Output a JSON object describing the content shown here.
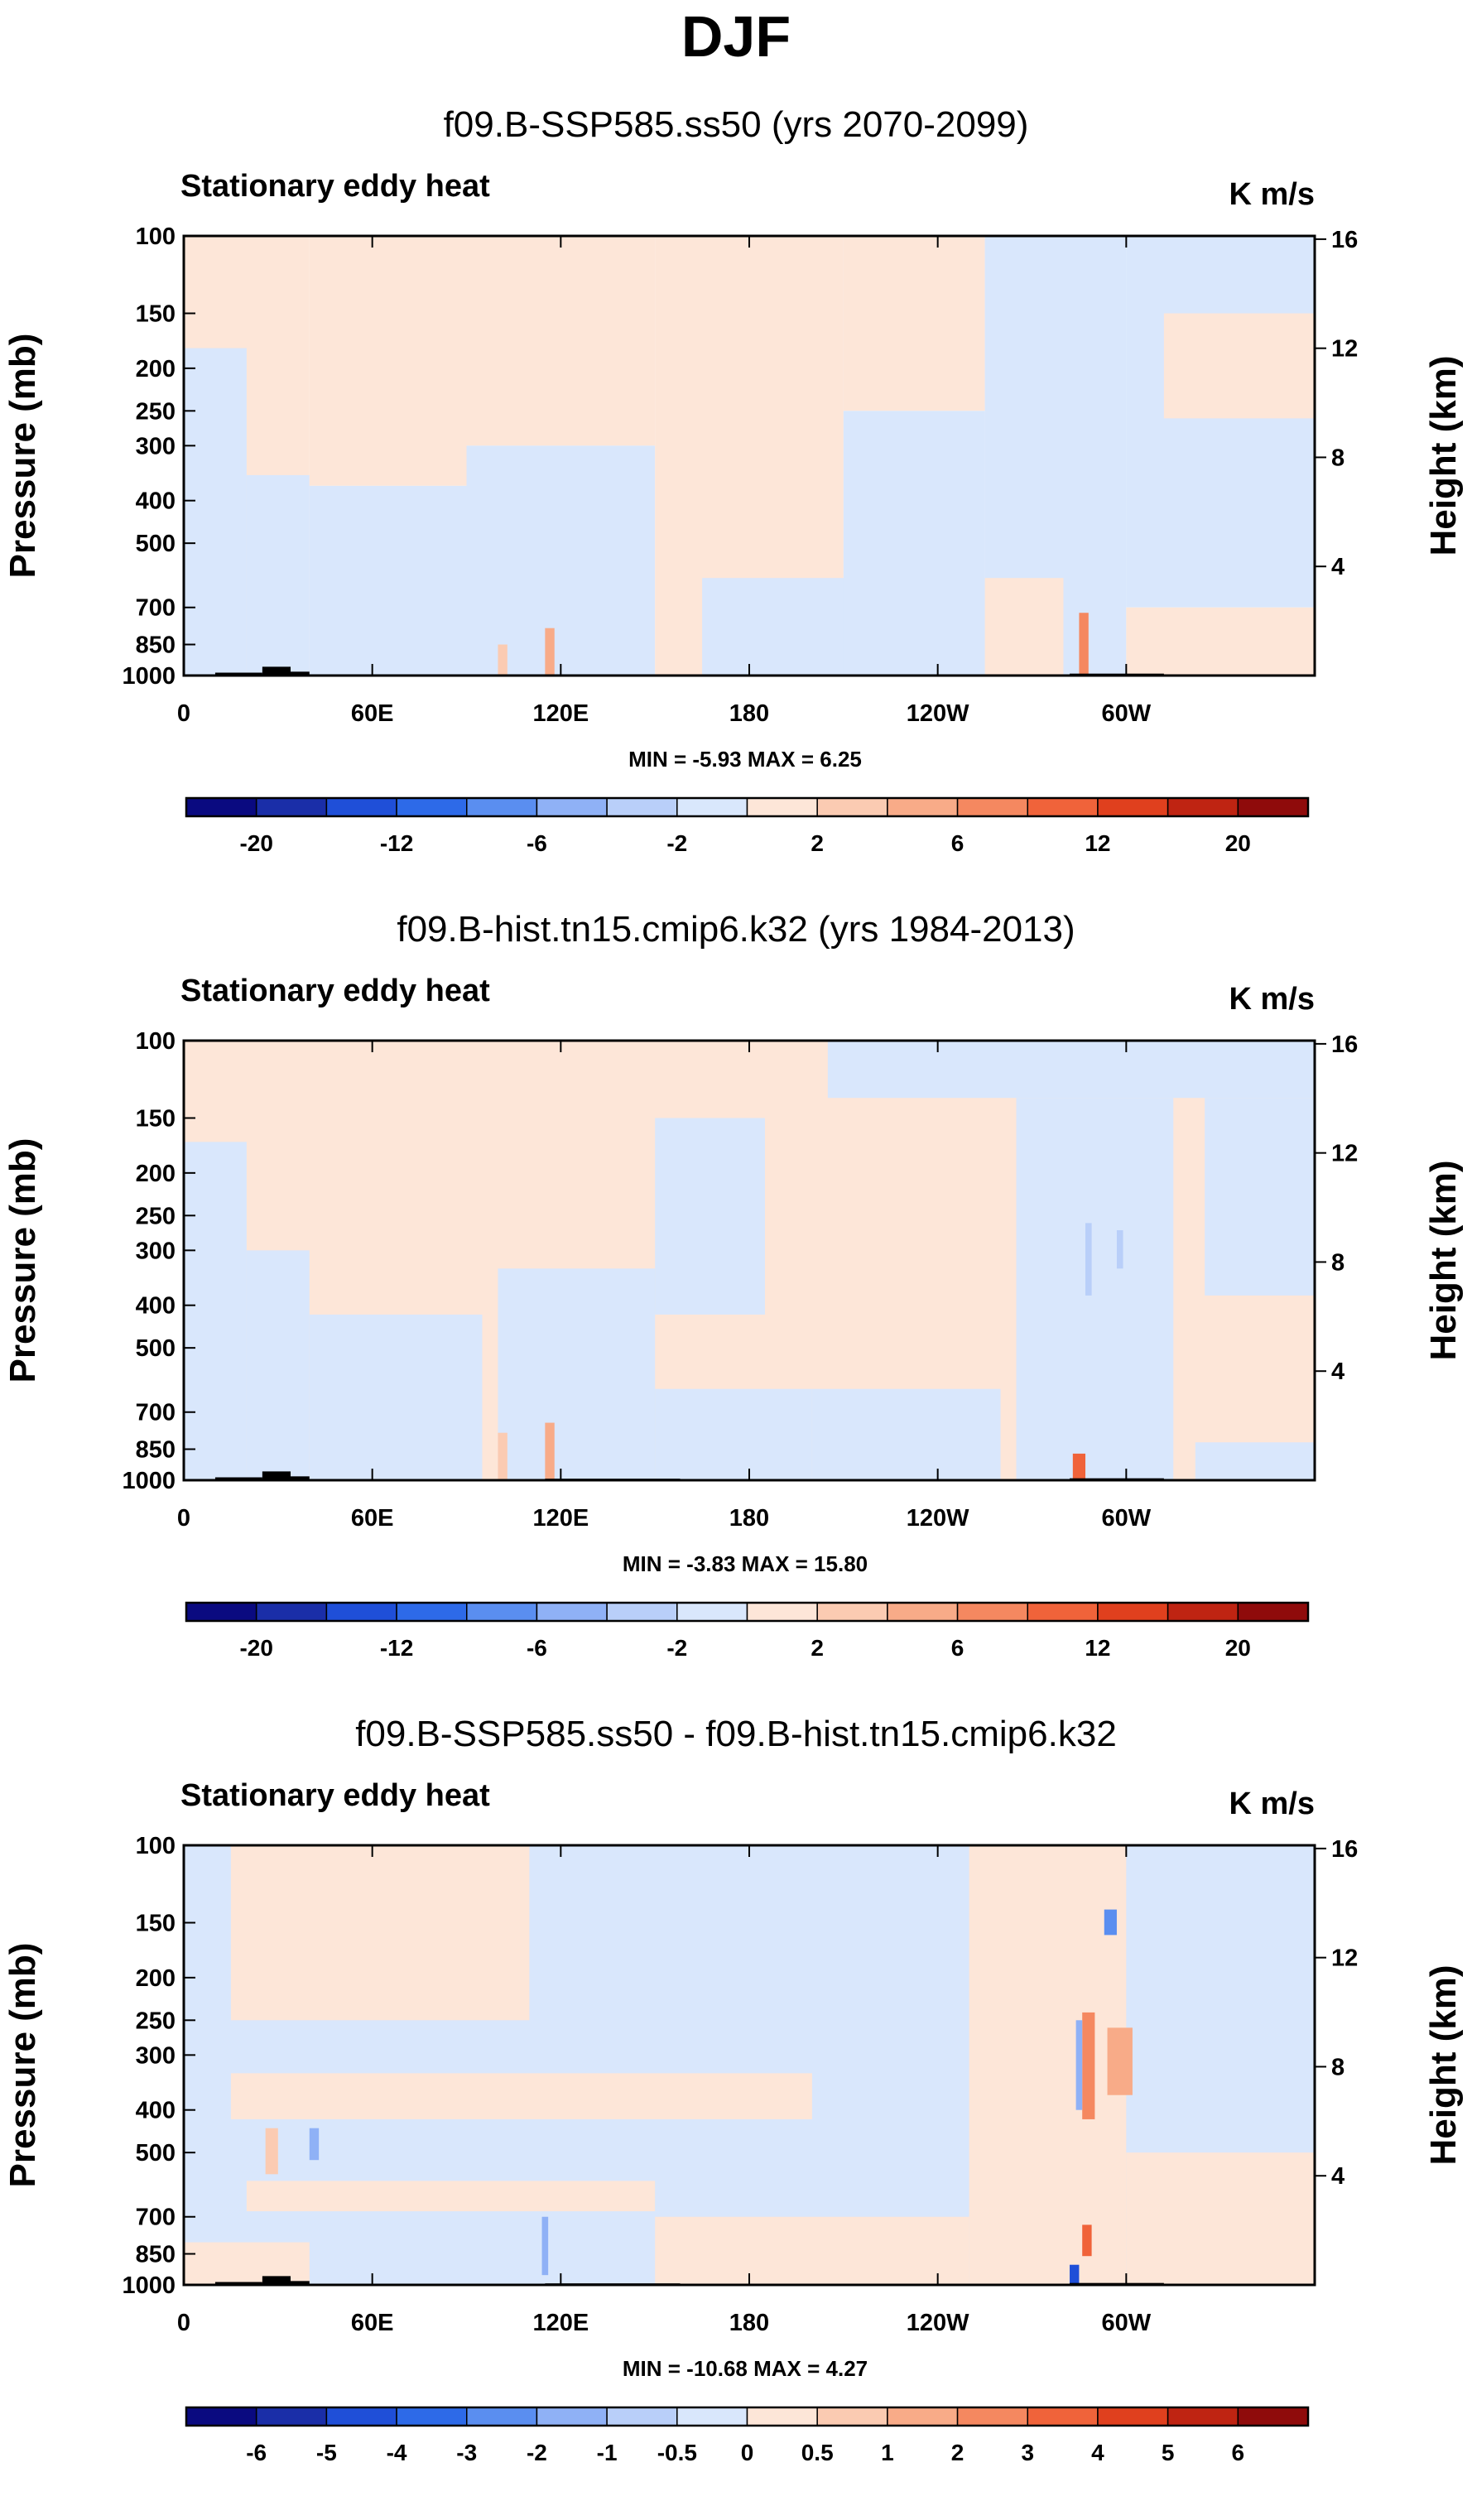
{
  "figure_title": "DJF",
  "chart_data": [
    {
      "type": "heatmap",
      "title": "f09.B-SSP585.ss50 (yrs 2070-2099)",
      "left_string": "Stationary eddy heat",
      "right_string": "K m/s",
      "ylabel": "Pressure (mb)",
      "ylabel_right": "Height (km)",
      "x_ticks": [
        "0",
        "60E",
        "120E",
        "180",
        "120W",
        "60W"
      ],
      "x_tick_values": [
        0,
        60,
        120,
        180,
        240,
        300
      ],
      "xlim": [
        0,
        360
      ],
      "y_ticks": [
        "100",
        "150",
        "200",
        "250",
        "300",
        "400",
        "500",
        "700",
        "850",
        "1000"
      ],
      "y_tick_values": [
        100,
        150,
        200,
        250,
        300,
        400,
        500,
        700,
        850,
        1000
      ],
      "ylim": [
        1000,
        100
      ],
      "y_right_ticks": [
        "16",
        "12",
        "8",
        "4"
      ],
      "y_right_values": [
        16,
        12,
        8,
        4
      ],
      "min_max": "MIN =  -5.93   MAX =   6.25",
      "min": -5.93,
      "max": 6.25,
      "colorbar_levels": [
        "-20",
        "-12",
        "-6",
        "-2",
        "2",
        "6",
        "12",
        "20"
      ],
      "colorbar_boxes": 16,
      "colorbar_label_every": 2,
      "colorbar_colors": [
        "#0a0a80",
        "#1a2ea8",
        "#1f4fd8",
        "#2d6ae8",
        "#5a8ef0",
        "#8fb1f6",
        "#b9cff9",
        "#d9e7fc",
        "#fde6d8",
        "#fbcbb2",
        "#f8ab88",
        "#f58860",
        "#f0633a",
        "#e0401e",
        "#bf2412",
        "#8f0b0b"
      ],
      "pattern": [
        {
          "x0": 0,
          "x1": 40,
          "p0": 100,
          "p1": 1000,
          "c": "#fde6d8"
        },
        {
          "x0": 0,
          "x1": 20,
          "p0": 180,
          "p1": 1000,
          "c": "#d9e7fc"
        },
        {
          "x0": 20,
          "x1": 40,
          "p0": 350,
          "p1": 1000,
          "c": "#d9e7fc"
        },
        {
          "x0": 40,
          "x1": 90,
          "p0": 370,
          "p1": 1000,
          "c": "#d9e7fc"
        },
        {
          "x0": 40,
          "x1": 90,
          "p0": 100,
          "p1": 370,
          "c": "#fde6d8"
        },
        {
          "x0": 90,
          "x1": 150,
          "p0": 100,
          "p1": 300,
          "c": "#fde6d8"
        },
        {
          "x0": 90,
          "x1": 150,
          "p0": 300,
          "p1": 1000,
          "c": "#d9e7fc"
        },
        {
          "x0": 150,
          "x1": 210,
          "p0": 100,
          "p1": 1000,
          "c": "#fde6d8"
        },
        {
          "x0": 165,
          "x1": 215,
          "p0": 600,
          "p1": 1000,
          "c": "#d9e7fc"
        },
        {
          "x0": 210,
          "x1": 255,
          "p0": 100,
          "p1": 250,
          "c": "#fde6d8"
        },
        {
          "x0": 210,
          "x1": 255,
          "p0": 250,
          "p1": 1000,
          "c": "#d9e7fc"
        },
        {
          "x0": 255,
          "x1": 300,
          "p0": 100,
          "p1": 1000,
          "c": "#d9e7fc"
        },
        {
          "x0": 255,
          "x1": 280,
          "p0": 600,
          "p1": 1000,
          "c": "#fde6d8"
        },
        {
          "x0": 300,
          "x1": 360,
          "p0": 100,
          "p1": 700,
          "c": "#d9e7fc"
        },
        {
          "x0": 300,
          "x1": 360,
          "p0": 700,
          "p1": 1000,
          "c": "#fde6d8"
        },
        {
          "x0": 312,
          "x1": 360,
          "p0": 150,
          "p1": 260,
          "c": "#fde6d8"
        },
        {
          "x0": 115,
          "x1": 118,
          "p0": 780,
          "p1": 1000,
          "c": "#f8ab88"
        },
        {
          "x0": 285,
          "x1": 288,
          "p0": 720,
          "p1": 1000,
          "c": "#f58860"
        },
        {
          "x0": 100,
          "x1": 103,
          "p0": 850,
          "p1": 1000,
          "c": "#fbcbb2"
        }
      ],
      "terrain": [
        {
          "x0": 10,
          "x1": 25,
          "p": 985
        },
        {
          "x0": 25,
          "x1": 34,
          "p": 955
        },
        {
          "x0": 34,
          "x1": 40,
          "p": 980
        },
        {
          "x0": 282,
          "x1": 312,
          "p": 990
        }
      ]
    },
    {
      "type": "heatmap",
      "title": "f09.B-hist.tn15.cmip6.k32 (yrs 1984-2013)",
      "left_string": "Stationary eddy heat",
      "right_string": "K m/s",
      "ylabel": "Pressure (mb)",
      "ylabel_right": "Height (km)",
      "x_ticks": [
        "0",
        "60E",
        "120E",
        "180",
        "120W",
        "60W"
      ],
      "x_tick_values": [
        0,
        60,
        120,
        180,
        240,
        300
      ],
      "xlim": [
        0,
        360
      ],
      "y_ticks": [
        "100",
        "150",
        "200",
        "250",
        "300",
        "400",
        "500",
        "700",
        "850",
        "1000"
      ],
      "y_tick_values": [
        100,
        150,
        200,
        250,
        300,
        400,
        500,
        700,
        850,
        1000
      ],
      "ylim": [
        1000,
        100
      ],
      "y_right_ticks": [
        "16",
        "12",
        "8",
        "4"
      ],
      "y_right_values": [
        16,
        12,
        8,
        4
      ],
      "min_max": "MIN =  -3.83   MAX =  15.80",
      "min": -3.83,
      "max": 15.8,
      "colorbar_levels": [
        "-20",
        "-12",
        "-6",
        "-2",
        "2",
        "6",
        "12",
        "20"
      ],
      "colorbar_boxes": 16,
      "colorbar_label_every": 2,
      "colorbar_colors": [
        "#0a0a80",
        "#1a2ea8",
        "#1f4fd8",
        "#2d6ae8",
        "#5a8ef0",
        "#8fb1f6",
        "#b9cff9",
        "#d9e7fc",
        "#fde6d8",
        "#fbcbb2",
        "#f8ab88",
        "#f58860",
        "#f0633a",
        "#e0401e",
        "#bf2412",
        "#8f0b0b"
      ],
      "pattern": [
        {
          "x0": 0,
          "x1": 360,
          "p0": 100,
          "p1": 1000,
          "c": "#fde6d8"
        },
        {
          "x0": 0,
          "x1": 20,
          "p0": 170,
          "p1": 1000,
          "c": "#d9e7fc"
        },
        {
          "x0": 20,
          "x1": 40,
          "p0": 300,
          "p1": 1000,
          "c": "#d9e7fc"
        },
        {
          "x0": 40,
          "x1": 95,
          "p0": 420,
          "p1": 1000,
          "c": "#d9e7fc"
        },
        {
          "x0": 100,
          "x1": 150,
          "p0": 330,
          "p1": 1000,
          "c": "#d9e7fc"
        },
        {
          "x0": 150,
          "x1": 185,
          "p0": 150,
          "p1": 420,
          "c": "#d9e7fc"
        },
        {
          "x0": 150,
          "x1": 200,
          "p0": 620,
          "p1": 1000,
          "c": "#d9e7fc"
        },
        {
          "x0": 200,
          "x1": 260,
          "p0": 620,
          "p1": 1000,
          "c": "#d9e7fc"
        },
        {
          "x0": 205,
          "x1": 360,
          "p0": 100,
          "p1": 135,
          "c": "#d9e7fc"
        },
        {
          "x0": 265,
          "x1": 315,
          "p0": 135,
          "p1": 1000,
          "c": "#d9e7fc"
        },
        {
          "x0": 325,
          "x1": 360,
          "p0": 135,
          "p1": 380,
          "c": "#d9e7fc"
        },
        {
          "x0": 322,
          "x1": 360,
          "p0": 820,
          "p1": 1000,
          "c": "#d9e7fc"
        },
        {
          "x0": 287,
          "x1": 289,
          "p0": 260,
          "p1": 380,
          "c": "#b9cff9"
        },
        {
          "x0": 297,
          "x1": 299,
          "p0": 270,
          "p1": 330,
          "c": "#b9cff9"
        },
        {
          "x0": 115,
          "x1": 118,
          "p0": 740,
          "p1": 1000,
          "c": "#f8ab88"
        },
        {
          "x0": 100,
          "x1": 103,
          "p0": 780,
          "p1": 1000,
          "c": "#fbcbb2"
        },
        {
          "x0": 283,
          "x1": 287,
          "p0": 870,
          "p1": 1000,
          "c": "#f0633a"
        }
      ],
      "terrain": [
        {
          "x0": 10,
          "x1": 25,
          "p": 985
        },
        {
          "x0": 25,
          "x1": 34,
          "p": 955
        },
        {
          "x0": 34,
          "x1": 40,
          "p": 980
        },
        {
          "x0": 115,
          "x1": 120,
          "p": 992
        },
        {
          "x0": 120,
          "x1": 158,
          "p": 992
        },
        {
          "x0": 282,
          "x1": 312,
          "p": 990
        }
      ]
    },
    {
      "type": "heatmap",
      "title": "f09.B-SSP585.ss50 - f09.B-hist.tn15.cmip6.k32",
      "left_string": "Stationary eddy heat",
      "right_string": "K m/s",
      "ylabel": "Pressure (mb)",
      "ylabel_right": "Height (km)",
      "x_ticks": [
        "0",
        "60E",
        "120E",
        "180",
        "120W",
        "60W"
      ],
      "x_tick_values": [
        0,
        60,
        120,
        180,
        240,
        300
      ],
      "xlim": [
        0,
        360
      ],
      "y_ticks": [
        "100",
        "150",
        "200",
        "250",
        "300",
        "400",
        "500",
        "700",
        "850",
        "1000"
      ],
      "y_tick_values": [
        100,
        150,
        200,
        250,
        300,
        400,
        500,
        700,
        850,
        1000
      ],
      "ylim": [
        1000,
        100
      ],
      "y_right_ticks": [
        "16",
        "12",
        "8",
        "4"
      ],
      "y_right_values": [
        16,
        12,
        8,
        4
      ],
      "min_max": "MIN = -10.68   MAX =   4.27",
      "min": -10.68,
      "max": 4.27,
      "colorbar_levels": [
        "-6",
        "-5",
        "-4",
        "-3",
        "-2",
        "-1",
        "-0.5",
        "0",
        "0.5",
        "1",
        "2",
        "3",
        "4",
        "5",
        "6"
      ],
      "colorbar_boxes": 16,
      "colorbar_label_every": 1,
      "colorbar_colors": [
        "#0a0a80",
        "#1a2ea8",
        "#1f4fd8",
        "#2d6ae8",
        "#5a8ef0",
        "#8fb1f6",
        "#b9cff9",
        "#d9e7fc",
        "#fde6d8",
        "#fbcbb2",
        "#f8ab88",
        "#f58860",
        "#f0633a",
        "#e0401e",
        "#bf2412",
        "#8f0b0b"
      ],
      "pattern": [
        {
          "x0": 0,
          "x1": 360,
          "p0": 100,
          "p1": 1000,
          "c": "#d9e7fc"
        },
        {
          "x0": 15,
          "x1": 110,
          "p0": 100,
          "p1": 250,
          "c": "#fde6d8"
        },
        {
          "x0": 15,
          "x1": 200,
          "p0": 330,
          "p1": 420,
          "c": "#fde6d8"
        },
        {
          "x0": 20,
          "x1": 150,
          "p0": 580,
          "p1": 680,
          "c": "#fde6d8"
        },
        {
          "x0": 0,
          "x1": 40,
          "p0": 800,
          "p1": 1000,
          "c": "#fde6d8"
        },
        {
          "x0": 150,
          "x1": 250,
          "p0": 700,
          "p1": 1000,
          "c": "#fde6d8"
        },
        {
          "x0": 250,
          "x1": 300,
          "p0": 100,
          "p1": 1000,
          "c": "#fde6d8"
        },
        {
          "x0": 300,
          "x1": 360,
          "p0": 500,
          "p1": 1000,
          "c": "#fde6d8"
        },
        {
          "x0": 286,
          "x1": 290,
          "p0": 240,
          "p1": 420,
          "c": "#f58860"
        },
        {
          "x0": 294,
          "x1": 302,
          "p0": 260,
          "p1": 370,
          "c": "#f8ab88"
        },
        {
          "x0": 284,
          "x1": 286,
          "p0": 250,
          "p1": 400,
          "c": "#8fb1f6"
        },
        {
          "x0": 286,
          "x1": 289,
          "p0": 730,
          "p1": 860,
          "c": "#f0633a"
        },
        {
          "x0": 282,
          "x1": 285,
          "p0": 900,
          "p1": 1000,
          "c": "#1f4fd8"
        },
        {
          "x0": 293,
          "x1": 297,
          "p0": 140,
          "p1": 160,
          "c": "#5a8ef0"
        },
        {
          "x0": 26,
          "x1": 30,
          "p0": 440,
          "p1": 560,
          "c": "#fbcbb2"
        },
        {
          "x0": 40,
          "x1": 43,
          "p0": 440,
          "p1": 520,
          "c": "#8fb1f6"
        },
        {
          "x0": 114,
          "x1": 116,
          "p0": 700,
          "p1": 950,
          "c": "#8fb1f6"
        }
      ],
      "terrain": [
        {
          "x0": 10,
          "x1": 25,
          "p": 985
        },
        {
          "x0": 25,
          "x1": 34,
          "p": 955
        },
        {
          "x0": 34,
          "x1": 40,
          "p": 980
        },
        {
          "x0": 115,
          "x1": 120,
          "p": 992
        },
        {
          "x0": 120,
          "x1": 158,
          "p": 992
        },
        {
          "x0": 282,
          "x1": 312,
          "p": 990
        }
      ]
    }
  ]
}
